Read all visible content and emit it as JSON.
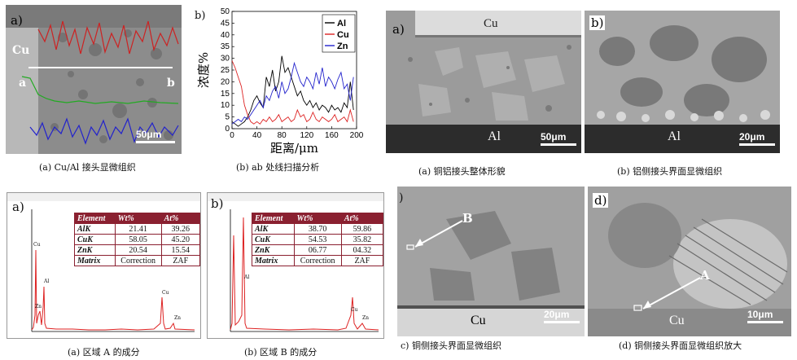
{
  "panels": {
    "p1": {
      "label": "a)",
      "label_cu": "Cu",
      "label_a": "a",
      "label_b": "b",
      "scale": "50μm",
      "caption": "(a) Cu/Al 接头显微组织"
    },
    "p2": {
      "label": "b)",
      "caption": "(b) ab 处线扫描分析"
    },
    "p3": {
      "label": "a)",
      "cu": "Cu",
      "al": "Al",
      "scale": "50μm",
      "caption": "(a)  铜铝接头整体形貌"
    },
    "p4": {
      "label": "b)",
      "al": "Al",
      "scale": "20μm",
      "caption": "(b)  铝侧接头界面显微组织"
    },
    "p5": {
      "label": "a)",
      "caption": "(a)  区域 A 的成分"
    },
    "p6": {
      "label": "b)",
      "caption": "(b)  区域 B 的成分"
    },
    "p7": {
      "label": ")",
      "marker": "B",
      "cu": "Cu",
      "scale": "20μm",
      "caption": "c) 铜侧接头界面显微组织"
    },
    "p8": {
      "label": "d)",
      "marker": "A",
      "cu": "Cu",
      "scale": "10μm",
      "caption": "(d)  铜侧接头界面显微组织放大"
    }
  },
  "chart_data": {
    "type": "line",
    "title": "",
    "xlabel": "距离/μm",
    "ylabel": "浓度%",
    "xlim": [
      0,
      200
    ],
    "ylim": [
      0,
      50
    ],
    "xticks": [
      0,
      40,
      80,
      120,
      160,
      200
    ],
    "yticks": [
      0,
      5,
      10,
      15,
      20,
      25,
      30,
      35,
      40,
      45,
      50
    ],
    "legend_position": "top-right",
    "series": [
      {
        "name": "Al",
        "color": "#000000",
        "x": [
          0,
          5,
          10,
          15,
          20,
          25,
          30,
          35,
          40,
          45,
          50,
          55,
          60,
          65,
          70,
          75,
          80,
          85,
          90,
          95,
          100,
          105,
          110,
          115,
          120,
          125,
          130,
          135,
          140,
          145,
          150,
          155,
          160,
          165,
          170,
          175,
          180,
          185,
          190,
          195
        ],
        "y": [
          3,
          2,
          1,
          2,
          3,
          5,
          8,
          12,
          14,
          11,
          9,
          22,
          18,
          25,
          16,
          20,
          31,
          24,
          26,
          22,
          18,
          14,
          16,
          12,
          10,
          12,
          9,
          11,
          8,
          10,
          9,
          7,
          10,
          8,
          9,
          7,
          11,
          9,
          20,
          8
        ]
      },
      {
        "name": "Cu",
        "color": "#dd2222",
        "x": [
          0,
          5,
          10,
          15,
          20,
          25,
          30,
          35,
          40,
          45,
          50,
          55,
          60,
          65,
          70,
          75,
          80,
          85,
          90,
          95,
          100,
          105,
          110,
          115,
          120,
          125,
          130,
          135,
          140,
          145,
          150,
          155,
          160,
          165,
          170,
          175,
          180,
          185,
          190,
          195
        ],
        "y": [
          29,
          26,
          22,
          18,
          10,
          6,
          3,
          2,
          3,
          2,
          4,
          3,
          5,
          3,
          4,
          6,
          3,
          4,
          5,
          3,
          4,
          8,
          5,
          6,
          3,
          4,
          7,
          4,
          3,
          5,
          4,
          3,
          4,
          6,
          3,
          4,
          5,
          3,
          8,
          3
        ]
      },
      {
        "name": "Zn",
        "color": "#2222cc",
        "x": [
          0,
          5,
          10,
          15,
          20,
          25,
          30,
          35,
          40,
          45,
          50,
          55,
          60,
          65,
          70,
          75,
          80,
          85,
          90,
          95,
          100,
          105,
          110,
          115,
          120,
          125,
          130,
          135,
          140,
          145,
          150,
          155,
          160,
          165,
          170,
          175,
          180,
          185,
          190,
          195
        ],
        "y": [
          2,
          3,
          4,
          3,
          5,
          4,
          6,
          8,
          10,
          12,
          9,
          14,
          12,
          16,
          18,
          13,
          20,
          15,
          17,
          22,
          28,
          24,
          20,
          18,
          22,
          20,
          17,
          24,
          19,
          26,
          18,
          22,
          20,
          17,
          21,
          24,
          17,
          19,
          12,
          22
        ]
      }
    ]
  },
  "eds_a": {
    "headers": [
      "Element",
      "Wt%",
      "At%"
    ],
    "rows": [
      [
        "AlK",
        "21.41",
        "39.26"
      ],
      [
        "CuK",
        "58.05",
        "45.20"
      ],
      [
        "ZnK",
        "20.54",
        "15.54"
      ],
      [
        "Matrix",
        "Correction",
        "ZAF"
      ]
    ],
    "peaks": [
      "Cu",
      "Zn",
      "Al",
      "Cu",
      "Zn"
    ]
  },
  "eds_b": {
    "headers": [
      "Element",
      "Wt%",
      "At%"
    ],
    "rows": [
      [
        "AlK",
        "38.70",
        "59.86"
      ],
      [
        "CuK",
        "54.53",
        "35.82"
      ],
      [
        "ZnK",
        "06.77",
        "04.32"
      ],
      [
        "Matrix",
        "Correction",
        "ZAF"
      ]
    ],
    "peaks": [
      "Al",
      "Cu",
      "Zn"
    ]
  }
}
